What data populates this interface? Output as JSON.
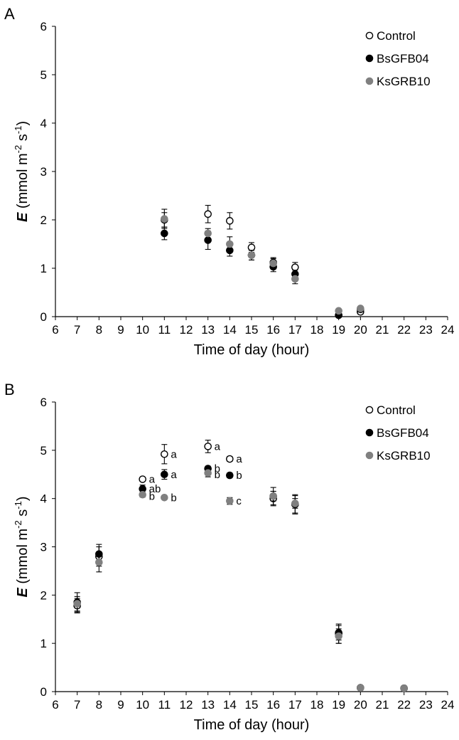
{
  "chart_data": [
    {
      "panel": "A",
      "type": "scatter",
      "xlabel": "Time of day (hour)",
      "ylabel": {
        "var": "E",
        "unit_pre": " (mmol m",
        "sup1": "-2",
        "unit_mid": " s",
        "sup2": "-1",
        "unit_post": ")"
      },
      "xlim": [
        6,
        24
      ],
      "ylim": [
        0,
        6
      ],
      "xticks": [
        6,
        7,
        8,
        9,
        10,
        11,
        12,
        13,
        14,
        15,
        16,
        17,
        18,
        19,
        20,
        21,
        22,
        23,
        24
      ],
      "yticks": [
        0,
        1,
        2,
        3,
        4,
        5,
        6
      ],
      "legend_position": "top-right",
      "series": [
        {
          "name": "Control",
          "style": "open",
          "x": [
            11,
            13,
            14,
            15,
            16,
            17,
            19,
            20
          ],
          "y": [
            2.0,
            2.12,
            1.98,
            1.43,
            1.12,
            1.02,
            0.03,
            0.1
          ],
          "err": [
            0.15,
            0.18,
            0.17,
            0.1,
            0.1,
            0.1,
            0.03,
            0.05
          ]
        },
        {
          "name": "BsGFB04",
          "style": "black",
          "x": [
            11,
            13,
            14,
            15,
            16,
            17,
            19,
            20
          ],
          "y": [
            1.72,
            1.58,
            1.37,
            1.27,
            1.03,
            0.88,
            0.03,
            0.15
          ],
          "err": [
            0.13,
            0.19,
            0.12,
            0.1,
            0.1,
            0.08,
            0.03,
            0.05
          ]
        },
        {
          "name": "KsGRB10",
          "style": "gray",
          "x": [
            11,
            13,
            14,
            15,
            16,
            17,
            19,
            20
          ],
          "y": [
            2.02,
            1.72,
            1.5,
            1.27,
            1.1,
            0.78,
            0.12,
            0.17
          ],
          "err": [
            0.2,
            0.1,
            0.15,
            0.1,
            0.1,
            0.1,
            0.03,
            0.04
          ]
        }
      ],
      "annotations": []
    },
    {
      "panel": "B",
      "type": "scatter",
      "xlabel": "Time of day (hour)",
      "ylabel": {
        "var": "E",
        "unit_pre": " (mmol m",
        "sup1": "-2",
        "unit_mid": " s",
        "sup2": "-1",
        "unit_post": ")"
      },
      "xlim": [
        6,
        24
      ],
      "ylim": [
        0,
        6
      ],
      "xticks": [
        6,
        7,
        8,
        9,
        10,
        11,
        12,
        13,
        14,
        15,
        16,
        17,
        18,
        19,
        20,
        21,
        22,
        23,
        24
      ],
      "yticks": [
        0,
        1,
        2,
        3,
        4,
        5,
        6
      ],
      "legend_position": "top-right",
      "series": [
        {
          "name": "Control",
          "style": "open",
          "x": [
            7,
            8,
            10,
            11,
            13,
            14,
            16,
            17,
            19,
            20,
            22
          ],
          "y": [
            1.78,
            2.8,
            4.4,
            4.92,
            5.08,
            4.82,
            4.0,
            3.88,
            1.2,
            0.08,
            0.07
          ],
          "err": [
            0.15,
            0.2,
            0.04,
            0.2,
            0.13,
            0.05,
            0.15,
            0.18,
            0.2,
            0.02,
            0.02
          ]
        },
        {
          "name": "BsGFB04",
          "style": "black",
          "x": [
            7,
            8,
            10,
            11,
            13,
            14,
            16,
            17,
            19,
            20,
            22
          ],
          "y": [
            1.85,
            2.85,
            4.2,
            4.5,
            4.62,
            4.48,
            4.05,
            3.88,
            1.22,
            0.08,
            0.07
          ],
          "err": [
            0.2,
            0.2,
            0.08,
            0.1,
            0.05,
            0.05,
            0.18,
            0.2,
            0.15,
            0.02,
            0.02
          ]
        },
        {
          "name": "KsGRB10",
          "style": "gray",
          "x": [
            7,
            8,
            10,
            11,
            13,
            14,
            16,
            17,
            19,
            20,
            22
          ],
          "y": [
            1.82,
            2.68,
            4.08,
            4.02,
            4.53,
            3.95,
            4.05,
            3.9,
            1.15,
            0.08,
            0.07
          ],
          "err": [
            0.15,
            0.2,
            0.05,
            0.03,
            0.08,
            0.07,
            0.1,
            0.1,
            0.15,
            0.02,
            0.02
          ]
        }
      ],
      "annotations": [
        {
          "x": 10,
          "y": 4.4,
          "text": "a"
        },
        {
          "x": 10,
          "y": 4.2,
          "text": "ab"
        },
        {
          "x": 10,
          "y": 4.05,
          "text": "b"
        },
        {
          "x": 11,
          "y": 4.92,
          "text": "a"
        },
        {
          "x": 11,
          "y": 4.5,
          "text": "a"
        },
        {
          "x": 11,
          "y": 4.02,
          "text": "b"
        },
        {
          "x": 13,
          "y": 5.08,
          "text": "a"
        },
        {
          "x": 13,
          "y": 4.62,
          "text": "b"
        },
        {
          "x": 13,
          "y": 4.5,
          "text": "b"
        },
        {
          "x": 14,
          "y": 4.82,
          "text": "a"
        },
        {
          "x": 14,
          "y": 4.48,
          "text": "b"
        },
        {
          "x": 14,
          "y": 3.95,
          "text": "c"
        }
      ]
    }
  ]
}
